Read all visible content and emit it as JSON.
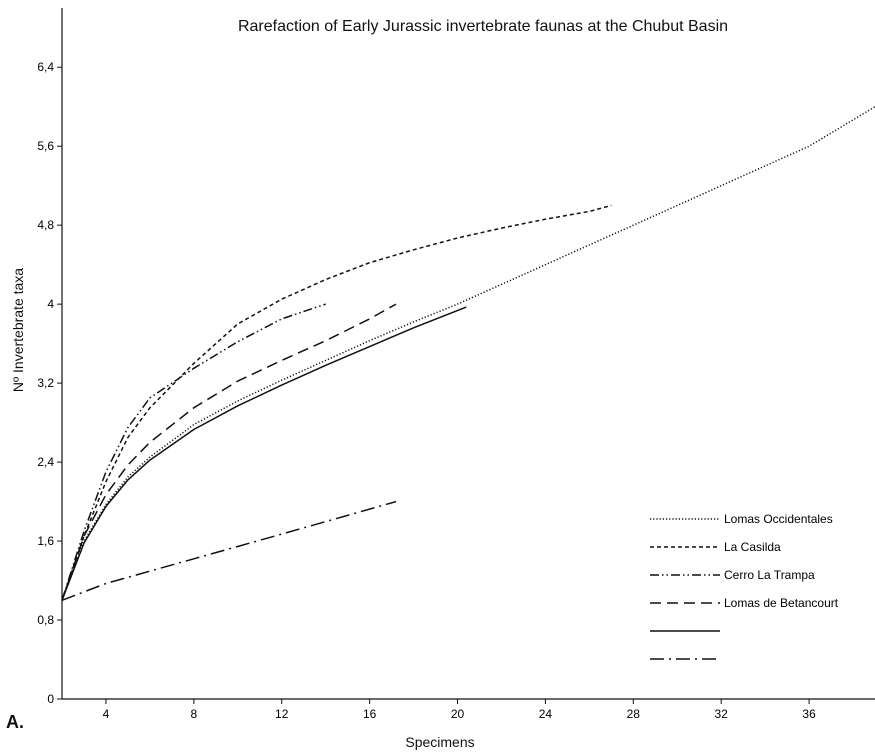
{
  "chart_data": {
    "type": "line",
    "title": "Rarefaction of Early Jurassic invertebrate faunas at the Chubut Basin",
    "xlabel": "Specimens",
    "ylabel": "Nº Invertebrate taxa",
    "panel_label": "A.",
    "xlim": [
      2,
      39
    ],
    "ylim": [
      0,
      7
    ],
    "x_ticks": [
      4,
      8,
      12,
      16,
      20,
      24,
      28,
      32,
      36
    ],
    "x_tick_labels": [
      "4",
      "8",
      "12",
      "16",
      "20",
      "24",
      "28",
      "32",
      "36"
    ],
    "y_ticks": [
      0,
      0.8,
      1.6,
      2.4,
      3.2,
      4,
      4.8,
      5.6,
      6.4
    ],
    "y_tick_labels": [
      "0",
      "0,8",
      "1,6",
      "2,4",
      "3,2",
      "4",
      "4,8",
      "5,6",
      "6,4"
    ],
    "grid": false,
    "legend_position": "bottom-right",
    "series": [
      {
        "name": "Lomas Occidentales",
        "dash": "dotted",
        "x": [
          2,
          3,
          4,
          5,
          6,
          8,
          10,
          12,
          14,
          16,
          18,
          20,
          24,
          28,
          32,
          36,
          39
        ],
        "y": [
          1.0,
          1.6,
          1.97,
          2.25,
          2.45,
          2.78,
          3.02,
          3.23,
          3.43,
          3.63,
          3.82,
          4.0,
          4.4,
          4.8,
          5.2,
          5.6,
          6.0
        ]
      },
      {
        "name": "La Casilda",
        "dash": "short-dash",
        "x": [
          2,
          3,
          4,
          5,
          6,
          8,
          10,
          12,
          14,
          16,
          18,
          20,
          22,
          24,
          26,
          27
        ],
        "y": [
          1.0,
          1.65,
          2.2,
          2.65,
          2.95,
          3.4,
          3.8,
          4.05,
          4.25,
          4.42,
          4.55,
          4.67,
          4.77,
          4.86,
          4.94,
          5.0
        ]
      },
      {
        "name": "Cerro La Trampa",
        "dash": "dash-dot-dot",
        "x": [
          2,
          3,
          4,
          5,
          6,
          8,
          10,
          12,
          14
        ],
        "y": [
          1.0,
          1.7,
          2.3,
          2.75,
          3.05,
          3.35,
          3.62,
          3.85,
          4.0
        ]
      },
      {
        "name": "Lomas de Betancourt",
        "dash": "long-dash",
        "x": [
          2,
          3,
          4,
          5,
          6,
          8,
          10,
          12,
          14,
          16,
          17.2
        ],
        "y": [
          1.0,
          1.65,
          2.07,
          2.37,
          2.6,
          2.95,
          3.22,
          3.43,
          3.63,
          3.85,
          4.0
        ]
      },
      {
        "name": "",
        "dash": "solid",
        "x": [
          2,
          3,
          4,
          5,
          6,
          8,
          10,
          12,
          14,
          16,
          18,
          20.4
        ],
        "y": [
          1.0,
          1.58,
          1.95,
          2.22,
          2.42,
          2.73,
          2.97,
          3.18,
          3.38,
          3.57,
          3.76,
          3.97
        ]
      },
      {
        "name": "",
        "dash": "long-dash-dot",
        "x": [
          2,
          4,
          8,
          12,
          17.2
        ],
        "y": [
          1.0,
          1.17,
          1.42,
          1.67,
          2.0
        ]
      }
    ]
  }
}
